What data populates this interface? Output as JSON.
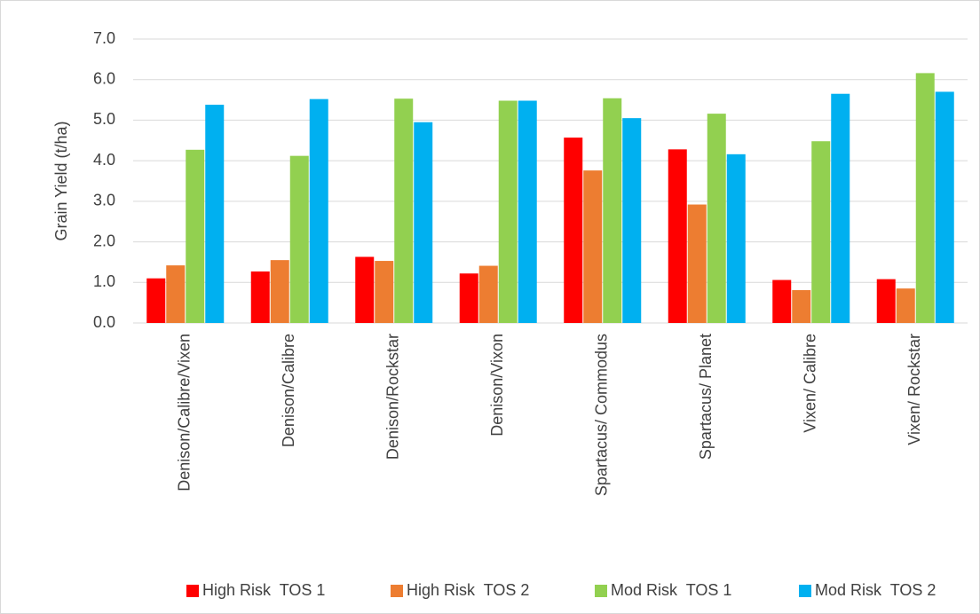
{
  "chart_data": {
    "type": "bar",
    "y_label": "Grain Yield (t/ha)",
    "categories": [
      "Denison/Calibre/Vixen",
      "Denison/Calibre",
      "Denison/Rockstar",
      "Denison/Vixon",
      "Spartacus/ Commodus",
      "Spartacus/ Planet",
      "Vixen/ Calibre",
      "Vixen/ Rockstar"
    ],
    "series": [
      {
        "name": "High Risk  TOS 1",
        "color": "#ff0000",
        "values": [
          1.1,
          1.27,
          1.63,
          1.22,
          4.57,
          4.28,
          1.06,
          1.08
        ]
      },
      {
        "name": "High Risk  TOS 2",
        "color": "#ed7d31",
        "values": [
          1.42,
          1.55,
          1.53,
          1.41,
          3.76,
          2.92,
          0.81,
          0.85
        ]
      },
      {
        "name": "Mod Risk  TOS 1",
        "color": "#92d050",
        "values": [
          4.27,
          4.12,
          5.53,
          5.48,
          5.54,
          5.16,
          4.48,
          6.16
        ]
      },
      {
        "name": "Mod Risk  TOS 2",
        "color": "#00b0f0",
        "values": [
          5.38,
          5.52,
          4.95,
          5.48,
          5.05,
          4.16,
          5.65,
          5.7
        ]
      }
    ],
    "ylim": [
      0,
      7
    ],
    "yticks": [
      {
        "value": 0,
        "label": "0.0"
      },
      {
        "value": 1,
        "label": "1.0"
      },
      {
        "value": 2,
        "label": "2.0"
      },
      {
        "value": 3,
        "label": "3.0"
      },
      {
        "value": 4,
        "label": "4.0"
      },
      {
        "value": 5,
        "label": "5.0"
      },
      {
        "value": 6,
        "label": "6.0"
      },
      {
        "value": 7,
        "label": "7.0"
      }
    ],
    "grid": true,
    "legend": "bottom"
  }
}
